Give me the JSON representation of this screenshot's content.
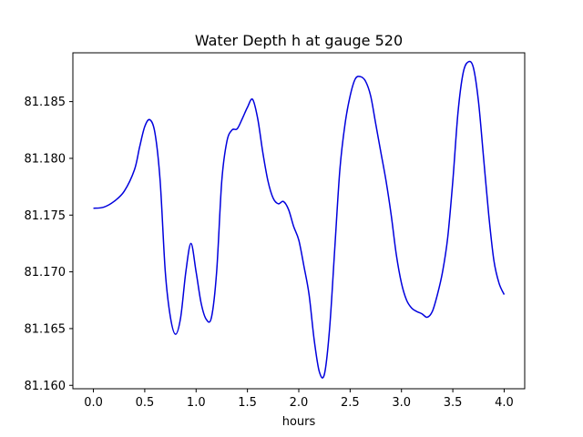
{
  "chart_data": {
    "type": "line",
    "title": "Water Depth h at gauge 520",
    "xlabel": "hours",
    "ylabel": "",
    "xlim": [
      -0.2,
      4.2
    ],
    "ylim": [
      81.1597,
      81.1893
    ],
    "x_ticks": [
      0.0,
      0.5,
      1.0,
      1.5,
      2.0,
      2.5,
      3.0,
      3.5,
      4.0
    ],
    "x_tick_labels": [
      "0.0",
      "0.5",
      "1.0",
      "1.5",
      "2.0",
      "2.5",
      "3.0",
      "3.5",
      "4.0"
    ],
    "y_ticks": [
      81.16,
      81.165,
      81.17,
      81.175,
      81.18,
      81.185
    ],
    "y_tick_labels": [
      "81.160",
      "81.165",
      "81.170",
      "81.175",
      "81.180",
      "81.185"
    ],
    "grid": false,
    "legend": "none",
    "series": [
      {
        "color": "#0000dd",
        "x": [
          0.0,
          0.1,
          0.2,
          0.3,
          0.4,
          0.45,
          0.5,
          0.55,
          0.6,
          0.65,
          0.7,
          0.75,
          0.8,
          0.85,
          0.9,
          0.95,
          1.0,
          1.05,
          1.1,
          1.15,
          1.2,
          1.25,
          1.3,
          1.35,
          1.4,
          1.45,
          1.5,
          1.55,
          1.6,
          1.65,
          1.7,
          1.75,
          1.8,
          1.85,
          1.9,
          1.95,
          2.0,
          2.05,
          2.1,
          2.15,
          2.2,
          2.25,
          2.3,
          2.35,
          2.4,
          2.45,
          2.5,
          2.55,
          2.6,
          2.65,
          2.7,
          2.75,
          2.8,
          2.85,
          2.9,
          2.95,
          3.0,
          3.05,
          3.1,
          3.15,
          3.2,
          3.25,
          3.3,
          3.35,
          3.4,
          3.45,
          3.5,
          3.55,
          3.6,
          3.65,
          3.7,
          3.75,
          3.8,
          3.85,
          3.9,
          3.95,
          4.0
        ],
        "values": [
          81.1756,
          81.1757,
          81.1762,
          81.1771,
          81.179,
          81.181,
          81.1828,
          81.1834,
          81.1822,
          81.178,
          81.17,
          81.166,
          81.1645,
          81.166,
          81.17,
          81.1725,
          81.17,
          81.1672,
          81.1658,
          81.166,
          81.17,
          81.178,
          81.1815,
          81.1825,
          81.1826,
          81.1835,
          81.1845,
          81.1852,
          81.1835,
          81.1805,
          81.178,
          81.1765,
          81.176,
          81.1762,
          81.1755,
          81.174,
          81.1728,
          81.1705,
          81.168,
          81.164,
          81.1612,
          81.161,
          81.165,
          81.172,
          81.179,
          81.183,
          81.1855,
          81.187,
          81.1872,
          81.1868,
          81.1855,
          81.183,
          81.1805,
          81.178,
          81.175,
          81.1715,
          81.169,
          81.1675,
          81.1668,
          81.1665,
          81.1663,
          81.166,
          81.1665,
          81.168,
          81.17,
          81.173,
          81.178,
          81.184,
          81.1875,
          81.1885,
          81.188,
          81.185,
          81.18,
          81.175,
          81.171,
          81.169,
          81.168
        ]
      }
    ]
  }
}
